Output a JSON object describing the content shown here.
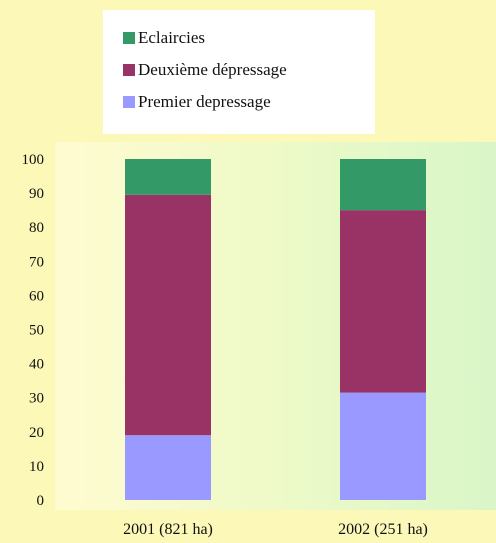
{
  "chart_data": {
    "type": "bar",
    "stacked": true,
    "categories": [
      "2001 (821 ha)",
      "2002 (251 ha)"
    ],
    "series": [
      {
        "name": "Premier depressage",
        "values": [
          19,
          31.5
        ],
        "color": "#9999ff"
      },
      {
        "name": "Deuxième dépressage",
        "values": [
          70.5,
          53.5
        ],
        "color": "#993366"
      },
      {
        "name": "Eclaircies",
        "values": [
          10.5,
          15
        ],
        "color": "#339966"
      }
    ],
    "legend_order": [
      "Eclaircies",
      "Deuxième dépressage",
      "Premier depressage"
    ],
    "ylim": [
      0,
      100
    ],
    "yticks": [
      0,
      10,
      20,
      30,
      40,
      50,
      60,
      70,
      80,
      90,
      100
    ],
    "grid": false,
    "legend_position": "top"
  }
}
